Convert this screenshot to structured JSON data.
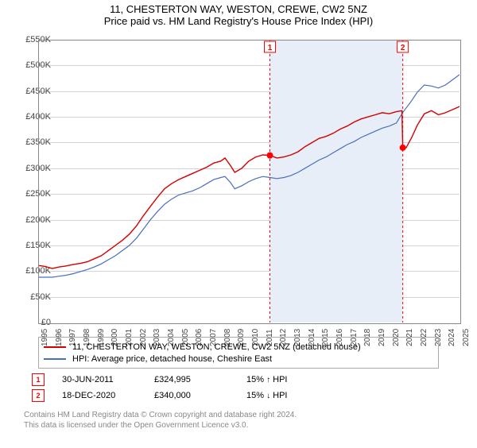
{
  "title": "11, CHESTERTON WAY, WESTON, CREWE, CW2 5NZ",
  "subtitle": "Price paid vs. HM Land Registry's House Price Index (HPI)",
  "chart": {
    "type": "line",
    "x_years": [
      1995,
      1996,
      1997,
      1998,
      1999,
      2000,
      2001,
      2002,
      2003,
      2004,
      2005,
      2006,
      2007,
      2008,
      2009,
      2010,
      2011,
      2012,
      2013,
      2014,
      2015,
      2016,
      2017,
      2018,
      2019,
      2020,
      2021,
      2022,
      2023,
      2024,
      2025
    ],
    "y_ticks": [
      0,
      50000,
      100000,
      150000,
      200000,
      250000,
      300000,
      350000,
      400000,
      450000,
      500000,
      550000
    ],
    "y_tick_labels": [
      "£0",
      "£50K",
      "£100K",
      "£150K",
      "£200K",
      "£250K",
      "£300K",
      "£350K",
      "£400K",
      "£450K",
      "£500K",
      "£550K"
    ],
    "ylim": [
      0,
      550000
    ],
    "grid_color": "#808080",
    "background_color": "#ffffff",
    "shade_color": "#e8eef8",
    "shade_x": [
      2011.5,
      2020.96
    ],
    "vlines": [
      {
        "x": 2011.5,
        "label": "1"
      },
      {
        "x": 2020.96,
        "label": "2"
      }
    ],
    "series": [
      {
        "name": "property",
        "color": "#d40000",
        "width": 1.4,
        "data": [
          [
            1995,
            111000
          ],
          [
            1995.5,
            109000
          ],
          [
            1996,
            105000
          ],
          [
            1996.5,
            108000
          ],
          [
            1997,
            110000
          ],
          [
            1997.5,
            113000
          ],
          [
            1998,
            115000
          ],
          [
            1998.5,
            118000
          ],
          [
            1999,
            124000
          ],
          [
            1999.5,
            130000
          ],
          [
            2000,
            140000
          ],
          [
            2000.5,
            150000
          ],
          [
            2001,
            160000
          ],
          [
            2001.5,
            172000
          ],
          [
            2002,
            188000
          ],
          [
            2002.5,
            208000
          ],
          [
            2003,
            226000
          ],
          [
            2003.5,
            244000
          ],
          [
            2004,
            260000
          ],
          [
            2004.5,
            270000
          ],
          [
            2005,
            278000
          ],
          [
            2005.5,
            284000
          ],
          [
            2006,
            290000
          ],
          [
            2006.5,
            296000
          ],
          [
            2007,
            302000
          ],
          [
            2007.5,
            310000
          ],
          [
            2008,
            314000
          ],
          [
            2008.3,
            320000
          ],
          [
            2008.7,
            305000
          ],
          [
            2009,
            292000
          ],
          [
            2009.5,
            300000
          ],
          [
            2010,
            314000
          ],
          [
            2010.5,
            322000
          ],
          [
            2011,
            326000
          ],
          [
            2011.5,
            324995
          ],
          [
            2012,
            320000
          ],
          [
            2012.5,
            322000
          ],
          [
            2013,
            326000
          ],
          [
            2013.5,
            332000
          ],
          [
            2014,
            342000
          ],
          [
            2014.5,
            350000
          ],
          [
            2015,
            358000
          ],
          [
            2015.5,
            362000
          ],
          [
            2016,
            368000
          ],
          [
            2016.5,
            376000
          ],
          [
            2017,
            382000
          ],
          [
            2017.5,
            390000
          ],
          [
            2018,
            396000
          ],
          [
            2018.5,
            400000
          ],
          [
            2019,
            404000
          ],
          [
            2019.5,
            408000
          ],
          [
            2020,
            406000
          ],
          [
            2020.5,
            410000
          ],
          [
            2020.9,
            412000
          ],
          [
            2020.96,
            340000
          ],
          [
            2021.2,
            340000
          ],
          [
            2021.6,
            360000
          ],
          [
            2022,
            384000
          ],
          [
            2022.5,
            406000
          ],
          [
            2023,
            412000
          ],
          [
            2023.5,
            404000
          ],
          [
            2024,
            408000
          ],
          [
            2024.5,
            414000
          ],
          [
            2025,
            420000
          ]
        ],
        "points": [
          [
            2011.5,
            324995
          ],
          [
            2020.96,
            340000
          ]
        ]
      },
      {
        "name": "hpi",
        "color": "#4a6fbf",
        "width": 1.2,
        "data": [
          [
            1995,
            88000
          ],
          [
            1995.5,
            88000
          ],
          [
            1996,
            88000
          ],
          [
            1996.5,
            90000
          ],
          [
            1997,
            92000
          ],
          [
            1997.5,
            95000
          ],
          [
            1998,
            99000
          ],
          [
            1998.5,
            103000
          ],
          [
            1999,
            108000
          ],
          [
            1999.5,
            114000
          ],
          [
            2000,
            122000
          ],
          [
            2000.5,
            130000
          ],
          [
            2001,
            140000
          ],
          [
            2001.5,
            150000
          ],
          [
            2002,
            164000
          ],
          [
            2002.5,
            182000
          ],
          [
            2003,
            200000
          ],
          [
            2003.5,
            216000
          ],
          [
            2004,
            230000
          ],
          [
            2004.5,
            240000
          ],
          [
            2005,
            248000
          ],
          [
            2005.5,
            252000
          ],
          [
            2006,
            256000
          ],
          [
            2006.5,
            262000
          ],
          [
            2007,
            270000
          ],
          [
            2007.5,
            278000
          ],
          [
            2008,
            282000
          ],
          [
            2008.3,
            284000
          ],
          [
            2008.7,
            272000
          ],
          [
            2009,
            260000
          ],
          [
            2009.5,
            266000
          ],
          [
            2010,
            274000
          ],
          [
            2010.5,
            280000
          ],
          [
            2011,
            284000
          ],
          [
            2011.5,
            282000
          ],
          [
            2012,
            280000
          ],
          [
            2012.5,
            282000
          ],
          [
            2013,
            286000
          ],
          [
            2013.5,
            292000
          ],
          [
            2014,
            300000
          ],
          [
            2014.5,
            308000
          ],
          [
            2015,
            316000
          ],
          [
            2015.5,
            322000
          ],
          [
            2016,
            330000
          ],
          [
            2016.5,
            338000
          ],
          [
            2017,
            346000
          ],
          [
            2017.5,
            352000
          ],
          [
            2018,
            360000
          ],
          [
            2018.5,
            366000
          ],
          [
            2019,
            372000
          ],
          [
            2019.5,
            378000
          ],
          [
            2020,
            382000
          ],
          [
            2020.5,
            388000
          ],
          [
            2021,
            410000
          ],
          [
            2021.5,
            428000
          ],
          [
            2022,
            448000
          ],
          [
            2022.5,
            462000
          ],
          [
            2023,
            460000
          ],
          [
            2023.5,
            456000
          ],
          [
            2024,
            462000
          ],
          [
            2024.5,
            472000
          ],
          [
            2025,
            482000
          ]
        ]
      }
    ],
    "legend": {
      "border_color": "#aaaaaa",
      "items": [
        {
          "color": "#d40000",
          "label": "11, CHESTERTON WAY, WESTON, CREWE, CW2 5NZ (detached house)"
        },
        {
          "color": "#4a6fbf",
          "label": "HPI: Average price, detached house, Cheshire East"
        }
      ]
    }
  },
  "events": [
    {
      "num": "1",
      "date": "30-JUN-2011",
      "price": "£324,995",
      "pct": "15%",
      "dir": "↑",
      "rel": "HPI"
    },
    {
      "num": "2",
      "date": "18-DEC-2020",
      "price": "£340,000",
      "pct": "15%",
      "dir": "↓",
      "rel": "HPI"
    }
  ],
  "footer_line1": "Contains HM Land Registry data © Crown copyright and database right 2024.",
  "footer_line2": "This data is licensed under the Open Government Licence v3.0."
}
